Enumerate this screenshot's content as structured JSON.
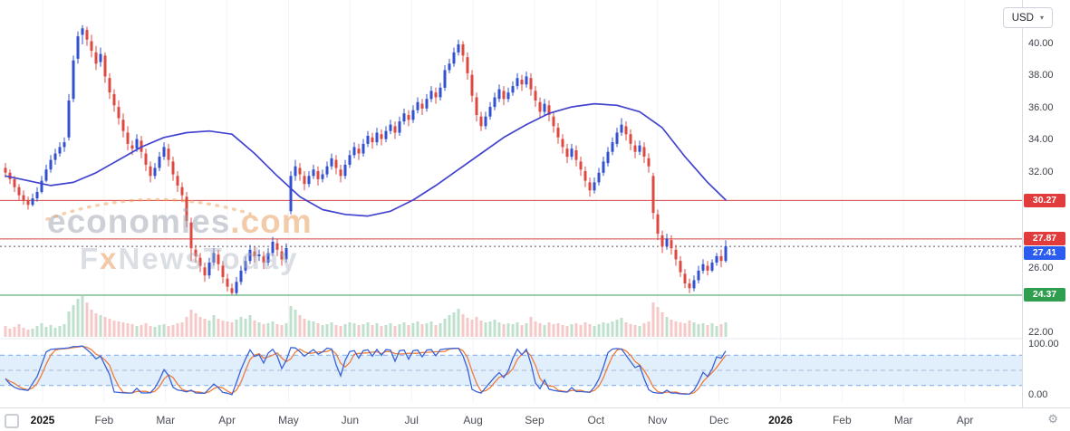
{
  "header": {
    "currency_selector": {
      "label": "USD",
      "chevron": "▾"
    }
  },
  "icons": {
    "gear": "⚙"
  },
  "watermark": {
    "line1_main": "economies",
    "line1_suffix": ".com",
    "line2_pre": "F",
    "line2_x": "x",
    "line2_post": "NewsToday"
  },
  "price_axis": {
    "labels": [
      {
        "text": "40.00",
        "price": 40.0
      },
      {
        "text": "38.00",
        "price": 38.0
      },
      {
        "text": "36.00",
        "price": 36.0
      },
      {
        "text": "34.00",
        "price": 34.0
      },
      {
        "text": "32.00",
        "price": 32.0
      },
      {
        "text": "26.00",
        "price": 26.0
      },
      {
        "text": "22.00",
        "price": 22.0
      }
    ]
  },
  "oscillator_axis": {
    "top": "100.00",
    "bottom": "0.00"
  },
  "time_axis": {
    "labels": [
      {
        "text": "2025",
        "bold": true
      },
      {
        "text": "Feb"
      },
      {
        "text": "Mar"
      },
      {
        "text": "Apr"
      },
      {
        "text": "May"
      },
      {
        "text": "Jun"
      },
      {
        "text": "Jul"
      },
      {
        "text": "Aug"
      },
      {
        "text": "Sep"
      },
      {
        "text": "Oct"
      },
      {
        "text": "Nov"
      },
      {
        "text": "Dec"
      },
      {
        "text": "2026",
        "bold": true
      },
      {
        "text": "Feb"
      },
      {
        "text": "Mar"
      },
      {
        "text": "Apr"
      }
    ]
  },
  "chart_data": {
    "type": "candlestick",
    "currency": "USD",
    "current_price": 27.41,
    "ylim": [
      21.8,
      42.6
    ],
    "x_range": [
      "Jan 2025",
      "early Dec 2025"
    ],
    "candle_colors": {
      "up": "#3351cf",
      "down": "#dd4840"
    },
    "volume_colors": {
      "up": "#bfe0cd",
      "down": "#f4c9c7"
    },
    "ma_color": "#4243cf",
    "levels": [
      {
        "name": "resistance-1",
        "price": 30.27,
        "label": "30.27",
        "color": "#d84343",
        "label_bg": "#e23b3b",
        "style": "solid"
      },
      {
        "name": "resistance-2",
        "price": 27.87,
        "label": "27.87",
        "color": "#d84343",
        "label_bg": "#e23b3b",
        "style": "solid"
      },
      {
        "name": "current-price",
        "price": 27.41,
        "label": "27.41",
        "color": "#555a63",
        "label_bg": "#2a5cf0",
        "style": "dotted"
      },
      {
        "name": "support",
        "price": 24.37,
        "label": "24.37",
        "color": "#3a9e57",
        "label_bg": "#2f9e4f",
        "style": "solid"
      }
    ],
    "oscillator": {
      "type": "stochastic",
      "k_period": 10,
      "d_period": 3,
      "range": [
        0,
        100
      ],
      "band": [
        20,
        80
      ],
      "mid": 50,
      "k_color": "#3a62d8",
      "d_color": "#ef7d3a",
      "band_fill": "#e1eefc",
      "band_edge": "#77a9ee"
    },
    "ma_anchors": [
      [
        0,
        31.8
      ],
      [
        5,
        31.5
      ],
      [
        10,
        31.2
      ],
      [
        15,
        31.4
      ],
      [
        20,
        32.0
      ],
      [
        25,
        32.8
      ],
      [
        30,
        33.6
      ],
      [
        35,
        34.2
      ],
      [
        40,
        34.5
      ],
      [
        45,
        34.6
      ],
      [
        50,
        34.4
      ],
      [
        55,
        33.2
      ],
      [
        60,
        31.8
      ],
      [
        65,
        30.5
      ],
      [
        70,
        29.7
      ],
      [
        75,
        29.4
      ],
      [
        80,
        29.3
      ],
      [
        85,
        29.6
      ],
      [
        90,
        30.3
      ],
      [
        95,
        31.2
      ],
      [
        100,
        32.2
      ],
      [
        105,
        33.2
      ],
      [
        110,
        34.2
      ],
      [
        115,
        35.0
      ],
      [
        120,
        35.7
      ],
      [
        125,
        36.1
      ],
      [
        130,
        36.3
      ],
      [
        135,
        36.2
      ],
      [
        140,
        35.8
      ],
      [
        145,
        34.8
      ],
      [
        150,
        33.0
      ],
      [
        155,
        31.4
      ],
      [
        159,
        30.3
      ]
    ],
    "candles": [
      [
        32.3,
        32.6,
        31.7,
        32.0
      ],
      [
        32.0,
        32.2,
        31.3,
        31.6
      ],
      [
        31.6,
        31.8,
        30.8,
        31.1
      ],
      [
        31.1,
        31.3,
        30.3,
        30.6
      ],
      [
        30.6,
        30.9,
        30.0,
        30.3
      ],
      [
        30.3,
        30.5,
        29.7,
        30.0
      ],
      [
        30.0,
        30.7,
        29.9,
        30.4
      ],
      [
        30.4,
        31.1,
        30.2,
        30.8
      ],
      [
        30.8,
        31.8,
        30.7,
        31.5
      ],
      [
        31.5,
        32.5,
        31.4,
        32.2
      ],
      [
        32.2,
        33.1,
        32.0,
        32.8
      ],
      [
        32.8,
        33.5,
        32.5,
        33.2
      ],
      [
        33.2,
        33.9,
        33.0,
        33.6
      ],
      [
        33.6,
        34.2,
        33.3,
        33.9
      ],
      [
        34.2,
        36.9,
        34.0,
        36.5
      ],
      [
        36.6,
        39.3,
        36.4,
        39.0
      ],
      [
        39.1,
        40.8,
        38.8,
        40.5
      ],
      [
        40.6,
        41.2,
        40.0,
        41.0
      ],
      [
        40.9,
        41.1,
        39.9,
        40.3
      ],
      [
        40.2,
        40.6,
        39.2,
        39.6
      ],
      [
        39.5,
        39.9,
        38.4,
        38.8
      ],
      [
        38.9,
        39.8,
        38.6,
        39.4
      ],
      [
        39.3,
        39.5,
        37.6,
        38.0
      ],
      [
        37.9,
        38.2,
        36.6,
        37.0
      ],
      [
        36.9,
        37.2,
        35.8,
        36.2
      ],
      [
        36.1,
        36.5,
        35.0,
        35.4
      ],
      [
        35.3,
        35.7,
        34.2,
        34.6
      ],
      [
        34.5,
        34.9,
        33.4,
        33.8
      ],
      [
        33.7,
        34.0,
        33.1,
        33.5
      ],
      [
        33.5,
        34.4,
        33.3,
        34.1
      ],
      [
        34.0,
        34.3,
        32.9,
        33.3
      ],
      [
        33.2,
        33.5,
        32.1,
        32.5
      ],
      [
        32.4,
        32.7,
        31.4,
        31.8
      ],
      [
        31.8,
        32.6,
        31.6,
        32.3
      ],
      [
        32.3,
        33.3,
        32.1,
        33.0
      ],
      [
        33.0,
        33.9,
        32.8,
        33.6
      ],
      [
        33.5,
        33.8,
        32.4,
        32.8
      ],
      [
        32.7,
        33.0,
        31.5,
        31.9
      ],
      [
        31.8,
        32.1,
        30.8,
        31.2
      ],
      [
        31.1,
        31.4,
        30.2,
        30.6
      ],
      [
        30.5,
        30.8,
        28.6,
        29.0
      ],
      [
        28.9,
        29.2,
        26.5,
        27.3
      ],
      [
        27.2,
        27.5,
        26.4,
        26.8
      ],
      [
        26.7,
        27.0,
        25.8,
        26.2
      ],
      [
        26.1,
        26.4,
        25.2,
        25.6
      ],
      [
        25.6,
        26.7,
        25.4,
        26.4
      ],
      [
        26.4,
        27.3,
        26.2,
        27.0
      ],
      [
        26.9,
        27.2,
        25.9,
        26.3
      ],
      [
        26.2,
        26.5,
        25.1,
        25.5
      ],
      [
        25.4,
        25.7,
        24.6,
        24.9
      ],
      [
        24.8,
        25.1,
        24.4,
        24.5
      ],
      [
        24.5,
        25.5,
        24.4,
        25.2
      ],
      [
        25.2,
        26.2,
        25.0,
        25.9
      ],
      [
        25.9,
        26.8,
        25.7,
        26.5
      ],
      [
        26.5,
        27.5,
        26.3,
        27.2
      ],
      [
        27.1,
        27.4,
        26.4,
        26.8
      ],
      [
        26.8,
        27.2,
        26.5,
        26.9
      ],
      [
        26.8,
        27.1,
        26.0,
        26.4
      ],
      [
        26.4,
        27.3,
        26.2,
        27.0
      ],
      [
        27.0,
        28.0,
        26.8,
        27.7
      ],
      [
        27.6,
        27.9,
        26.8,
        27.2
      ],
      [
        27.1,
        27.4,
        26.2,
        26.6
      ],
      [
        26.6,
        27.6,
        26.4,
        27.3
      ],
      [
        29.6,
        32.1,
        29.4,
        31.8
      ],
      [
        31.8,
        32.8,
        31.5,
        32.4
      ],
      [
        32.3,
        32.6,
        31.5,
        31.9
      ],
      [
        31.8,
        32.1,
        30.9,
        31.3
      ],
      [
        31.3,
        32.1,
        31.1,
        31.8
      ],
      [
        31.8,
        32.5,
        31.6,
        32.2
      ],
      [
        32.1,
        32.4,
        31.2,
        31.6
      ],
      [
        31.6,
        32.2,
        31.4,
        31.9
      ],
      [
        31.9,
        32.7,
        31.7,
        32.4
      ],
      [
        32.4,
        33.2,
        32.2,
        32.9
      ],
      [
        32.8,
        33.1,
        31.9,
        32.3
      ],
      [
        32.2,
        32.5,
        31.4,
        31.8
      ],
      [
        31.8,
        32.8,
        31.6,
        32.5
      ],
      [
        32.5,
        33.4,
        32.3,
        33.1
      ],
      [
        33.1,
        33.9,
        32.9,
        33.6
      ],
      [
        33.5,
        33.8,
        32.8,
        33.2
      ],
      [
        33.2,
        34.1,
        33.0,
        33.8
      ],
      [
        33.8,
        34.6,
        33.6,
        34.3
      ],
      [
        34.2,
        34.5,
        33.5,
        33.9
      ],
      [
        33.9,
        34.8,
        33.7,
        34.5
      ],
      [
        34.4,
        34.7,
        33.7,
        34.1
      ],
      [
        34.1,
        34.9,
        33.9,
        34.6
      ],
      [
        34.6,
        35.3,
        34.4,
        35.0
      ],
      [
        34.9,
        35.2,
        34.1,
        34.5
      ],
      [
        34.5,
        35.5,
        34.3,
        35.2
      ],
      [
        35.2,
        36.0,
        35.0,
        35.7
      ],
      [
        35.6,
        35.9,
        34.9,
        35.3
      ],
      [
        35.3,
        36.2,
        35.1,
        35.9
      ],
      [
        35.9,
        36.7,
        35.7,
        36.4
      ],
      [
        36.3,
        36.6,
        35.6,
        36.0
      ],
      [
        36.0,
        36.9,
        35.8,
        36.6
      ],
      [
        36.6,
        37.4,
        36.4,
        37.1
      ],
      [
        37.0,
        37.3,
        36.3,
        36.7
      ],
      [
        36.7,
        37.6,
        36.5,
        37.3
      ],
      [
        37.3,
        38.7,
        37.1,
        38.4
      ],
      [
        38.4,
        39.1,
        38.2,
        38.8
      ],
      [
        38.8,
        39.8,
        38.6,
        39.5
      ],
      [
        39.5,
        40.3,
        39.3,
        40.0
      ],
      [
        40.0,
        40.2,
        38.9,
        39.3
      ],
      [
        39.2,
        39.5,
        37.8,
        38.2
      ],
      [
        38.1,
        38.4,
        36.4,
        36.8
      ],
      [
        36.7,
        37.0,
        35.2,
        35.6
      ],
      [
        35.5,
        35.8,
        34.6,
        34.9
      ],
      [
        34.9,
        35.8,
        34.7,
        35.5
      ],
      [
        35.5,
        36.4,
        35.3,
        36.1
      ],
      [
        36.1,
        37.0,
        35.9,
        36.7
      ],
      [
        36.6,
        37.5,
        36.4,
        37.2
      ],
      [
        37.1,
        37.4,
        36.2,
        36.6
      ],
      [
        36.6,
        37.3,
        36.4,
        37.0
      ],
      [
        37.0,
        37.7,
        36.8,
        37.4
      ],
      [
        37.4,
        38.2,
        37.2,
        37.9
      ],
      [
        37.8,
        38.1,
        37.1,
        37.5
      ],
      [
        37.5,
        38.3,
        37.3,
        38.0
      ],
      [
        37.9,
        38.2,
        36.8,
        37.2
      ],
      [
        37.1,
        37.4,
        36.1,
        36.5
      ],
      [
        36.4,
        36.7,
        35.4,
        35.8
      ],
      [
        35.8,
        36.6,
        35.6,
        36.3
      ],
      [
        36.2,
        36.5,
        35.2,
        35.6
      ],
      [
        35.5,
        35.8,
        34.5,
        34.9
      ],
      [
        34.8,
        35.1,
        33.8,
        34.2
      ],
      [
        34.1,
        34.4,
        33.2,
        33.6
      ],
      [
        33.5,
        33.8,
        32.6,
        33.0
      ],
      [
        33.0,
        33.8,
        32.8,
        33.5
      ],
      [
        33.4,
        33.7,
        32.4,
        32.8
      ],
      [
        32.7,
        33.0,
        31.8,
        32.2
      ],
      [
        32.1,
        32.4,
        31.1,
        31.5
      ],
      [
        31.4,
        31.7,
        30.5,
        30.9
      ],
      [
        30.9,
        31.7,
        30.7,
        31.4
      ],
      [
        31.4,
        32.3,
        31.2,
        32.0
      ],
      [
        32.0,
        33.0,
        31.8,
        32.7
      ],
      [
        32.6,
        33.6,
        32.4,
        33.3
      ],
      [
        33.3,
        34.2,
        33.1,
        33.9
      ],
      [
        33.8,
        34.8,
        33.6,
        34.5
      ],
      [
        34.5,
        35.4,
        34.3,
        35.0
      ],
      [
        34.9,
        35.2,
        34.0,
        34.4
      ],
      [
        34.4,
        34.7,
        33.4,
        33.8
      ],
      [
        33.7,
        34.0,
        32.9,
        33.3
      ],
      [
        33.3,
        34.0,
        33.1,
        33.7
      ],
      [
        33.6,
        33.9,
        32.6,
        33.0
      ],
      [
        32.9,
        33.2,
        32.0,
        32.4
      ],
      [
        31.8,
        32.0,
        29.1,
        29.5
      ],
      [
        29.4,
        29.7,
        27.8,
        28.2
      ],
      [
        28.1,
        28.4,
        27.0,
        27.4
      ],
      [
        27.4,
        28.2,
        27.2,
        27.9
      ],
      [
        27.8,
        28.1,
        26.9,
        27.3
      ],
      [
        27.2,
        27.5,
        26.2,
        26.6
      ],
      [
        26.5,
        26.8,
        25.5,
        25.8
      ],
      [
        25.7,
        26.0,
        24.8,
        25.1
      ],
      [
        25.1,
        25.4,
        24.5,
        24.8
      ],
      [
        24.8,
        25.6,
        24.6,
        25.3
      ],
      [
        25.3,
        26.2,
        25.1,
        25.9
      ],
      [
        25.9,
        26.6,
        25.7,
        26.3
      ],
      [
        26.2,
        26.5,
        25.6,
        25.9
      ],
      [
        25.9,
        26.6,
        25.8,
        26.4
      ],
      [
        26.4,
        27.0,
        26.2,
        26.8
      ],
      [
        26.8,
        27.2,
        26.1,
        26.5
      ],
      [
        26.5,
        27.8,
        26.4,
        27.41
      ]
    ],
    "volumes": [
      12,
      9,
      11,
      14,
      10,
      8,
      9,
      12,
      15,
      11,
      13,
      10,
      12,
      14,
      28,
      35,
      42,
      45,
      38,
      30,
      26,
      24,
      22,
      20,
      18,
      17,
      16,
      15,
      14,
      12,
      13,
      15,
      12,
      11,
      13,
      14,
      12,
      13,
      15,
      16,
      22,
      30,
      26,
      22,
      20,
      18,
      24,
      20,
      18,
      17,
      16,
      19,
      22,
      20,
      24,
      18,
      16,
      14,
      15,
      17,
      14,
      13,
      15,
      34,
      30,
      24,
      20,
      18,
      17,
      15,
      13,
      14,
      16,
      13,
      12,
      14,
      16,
      15,
      13,
      14,
      16,
      13,
      15,
      12,
      13,
      15,
      12,
      14,
      16,
      13,
      15,
      17,
      14,
      15,
      17,
      13,
      15,
      20,
      24,
      27,
      31,
      25,
      21,
      19,
      22,
      18,
      16,
      17,
      19,
      16,
      14,
      15,
      14,
      16,
      13,
      15,
      22,
      17,
      15,
      13,
      16,
      14,
      15,
      13,
      12,
      14,
      15,
      13,
      16,
      14,
      12,
      14,
      16,
      15,
      17,
      19,
      21,
      16,
      14,
      13,
      12,
      15,
      17,
      38,
      33,
      27,
      22,
      19,
      17,
      16,
      15,
      18,
      16,
      14,
      15,
      13,
      15,
      12,
      14,
      16
    ]
  }
}
